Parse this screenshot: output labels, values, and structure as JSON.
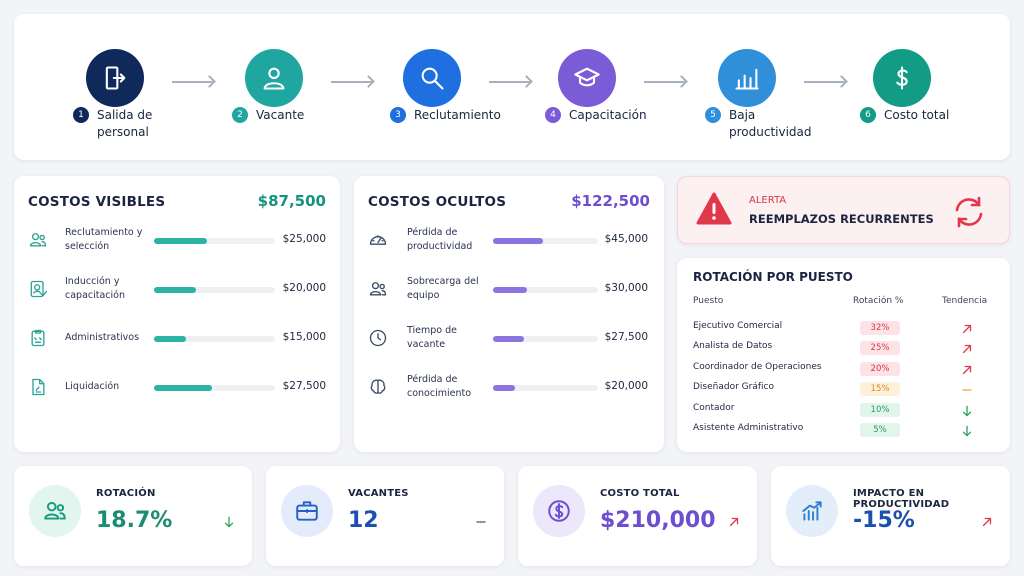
{
  "steps": [
    {
      "number": 1,
      "label": "Salida de personal"
    },
    {
      "number": 2,
      "label": "Vacante"
    },
    {
      "number": 3,
      "label": "Reclutamiento"
    },
    {
      "number": 4,
      "label": "Capacitación"
    },
    {
      "number": 5,
      "label": "Baja productividad"
    },
    {
      "number": 6,
      "label": "Costo total"
    }
  ],
  "visible": {
    "title": "COSTOS VISIBLES",
    "total": "$87,500",
    "items": [
      {
        "label": "Reclutamiento y selección",
        "value": 25000,
        "value_label": "$25,000"
      },
      {
        "label": "Inducción y capacitación",
        "value": 20000,
        "value_label": "$20,000"
      },
      {
        "label": "Administrativos",
        "value": 15000,
        "value_label": "$15,000"
      },
      {
        "label": "Liquidación",
        "value": 27500,
        "value_label": "$27,500"
      }
    ]
  },
  "hidden": {
    "title": "COSTOS OCULTOS",
    "total": "$122,500",
    "items": [
      {
        "label": "Pérdida de productividad",
        "value": 45000,
        "value_label": "$45,000"
      },
      {
        "label": "Sobrecarga del equipo",
        "value": 30000,
        "value_label": "$30,000"
      },
      {
        "label": "Tiempo de vacante",
        "value": 27500,
        "value_label": "$27,500"
      },
      {
        "label": "Pérdida de conocimiento",
        "value": 20000,
        "value_label": "$20,000"
      }
    ]
  },
  "alert": {
    "tag": "ALERTA",
    "message": "REEMPLAZOS RECURRENTES"
  },
  "rotation": {
    "title": "ROTACIÓN POR PUESTO",
    "columns": [
      "Puesto",
      "Rotación %",
      "Tendencia"
    ],
    "rows": [
      [
        "Ejecutivo Comercial",
        "32%"
      ],
      [
        "Analista de Datos",
        "25%"
      ],
      [
        "Coordinador de Operaciones",
        "20%"
      ],
      [
        "Diseñador Gráfico",
        "15%"
      ],
      [
        "Contador",
        "10%"
      ],
      [
        "Asistente Administrativo",
        "5%"
      ]
    ]
  },
  "kpis": [
    {
      "label": "ROTACIÓN",
      "value": "18.7%"
    },
    {
      "label": "VACANTES",
      "value": "12"
    },
    {
      "label": "COSTO TOTAL",
      "value": "$210,000"
    },
    {
      "label": "IMPACTO EN PRODUCTIVIDAD",
      "value": "-15%"
    }
  ]
}
